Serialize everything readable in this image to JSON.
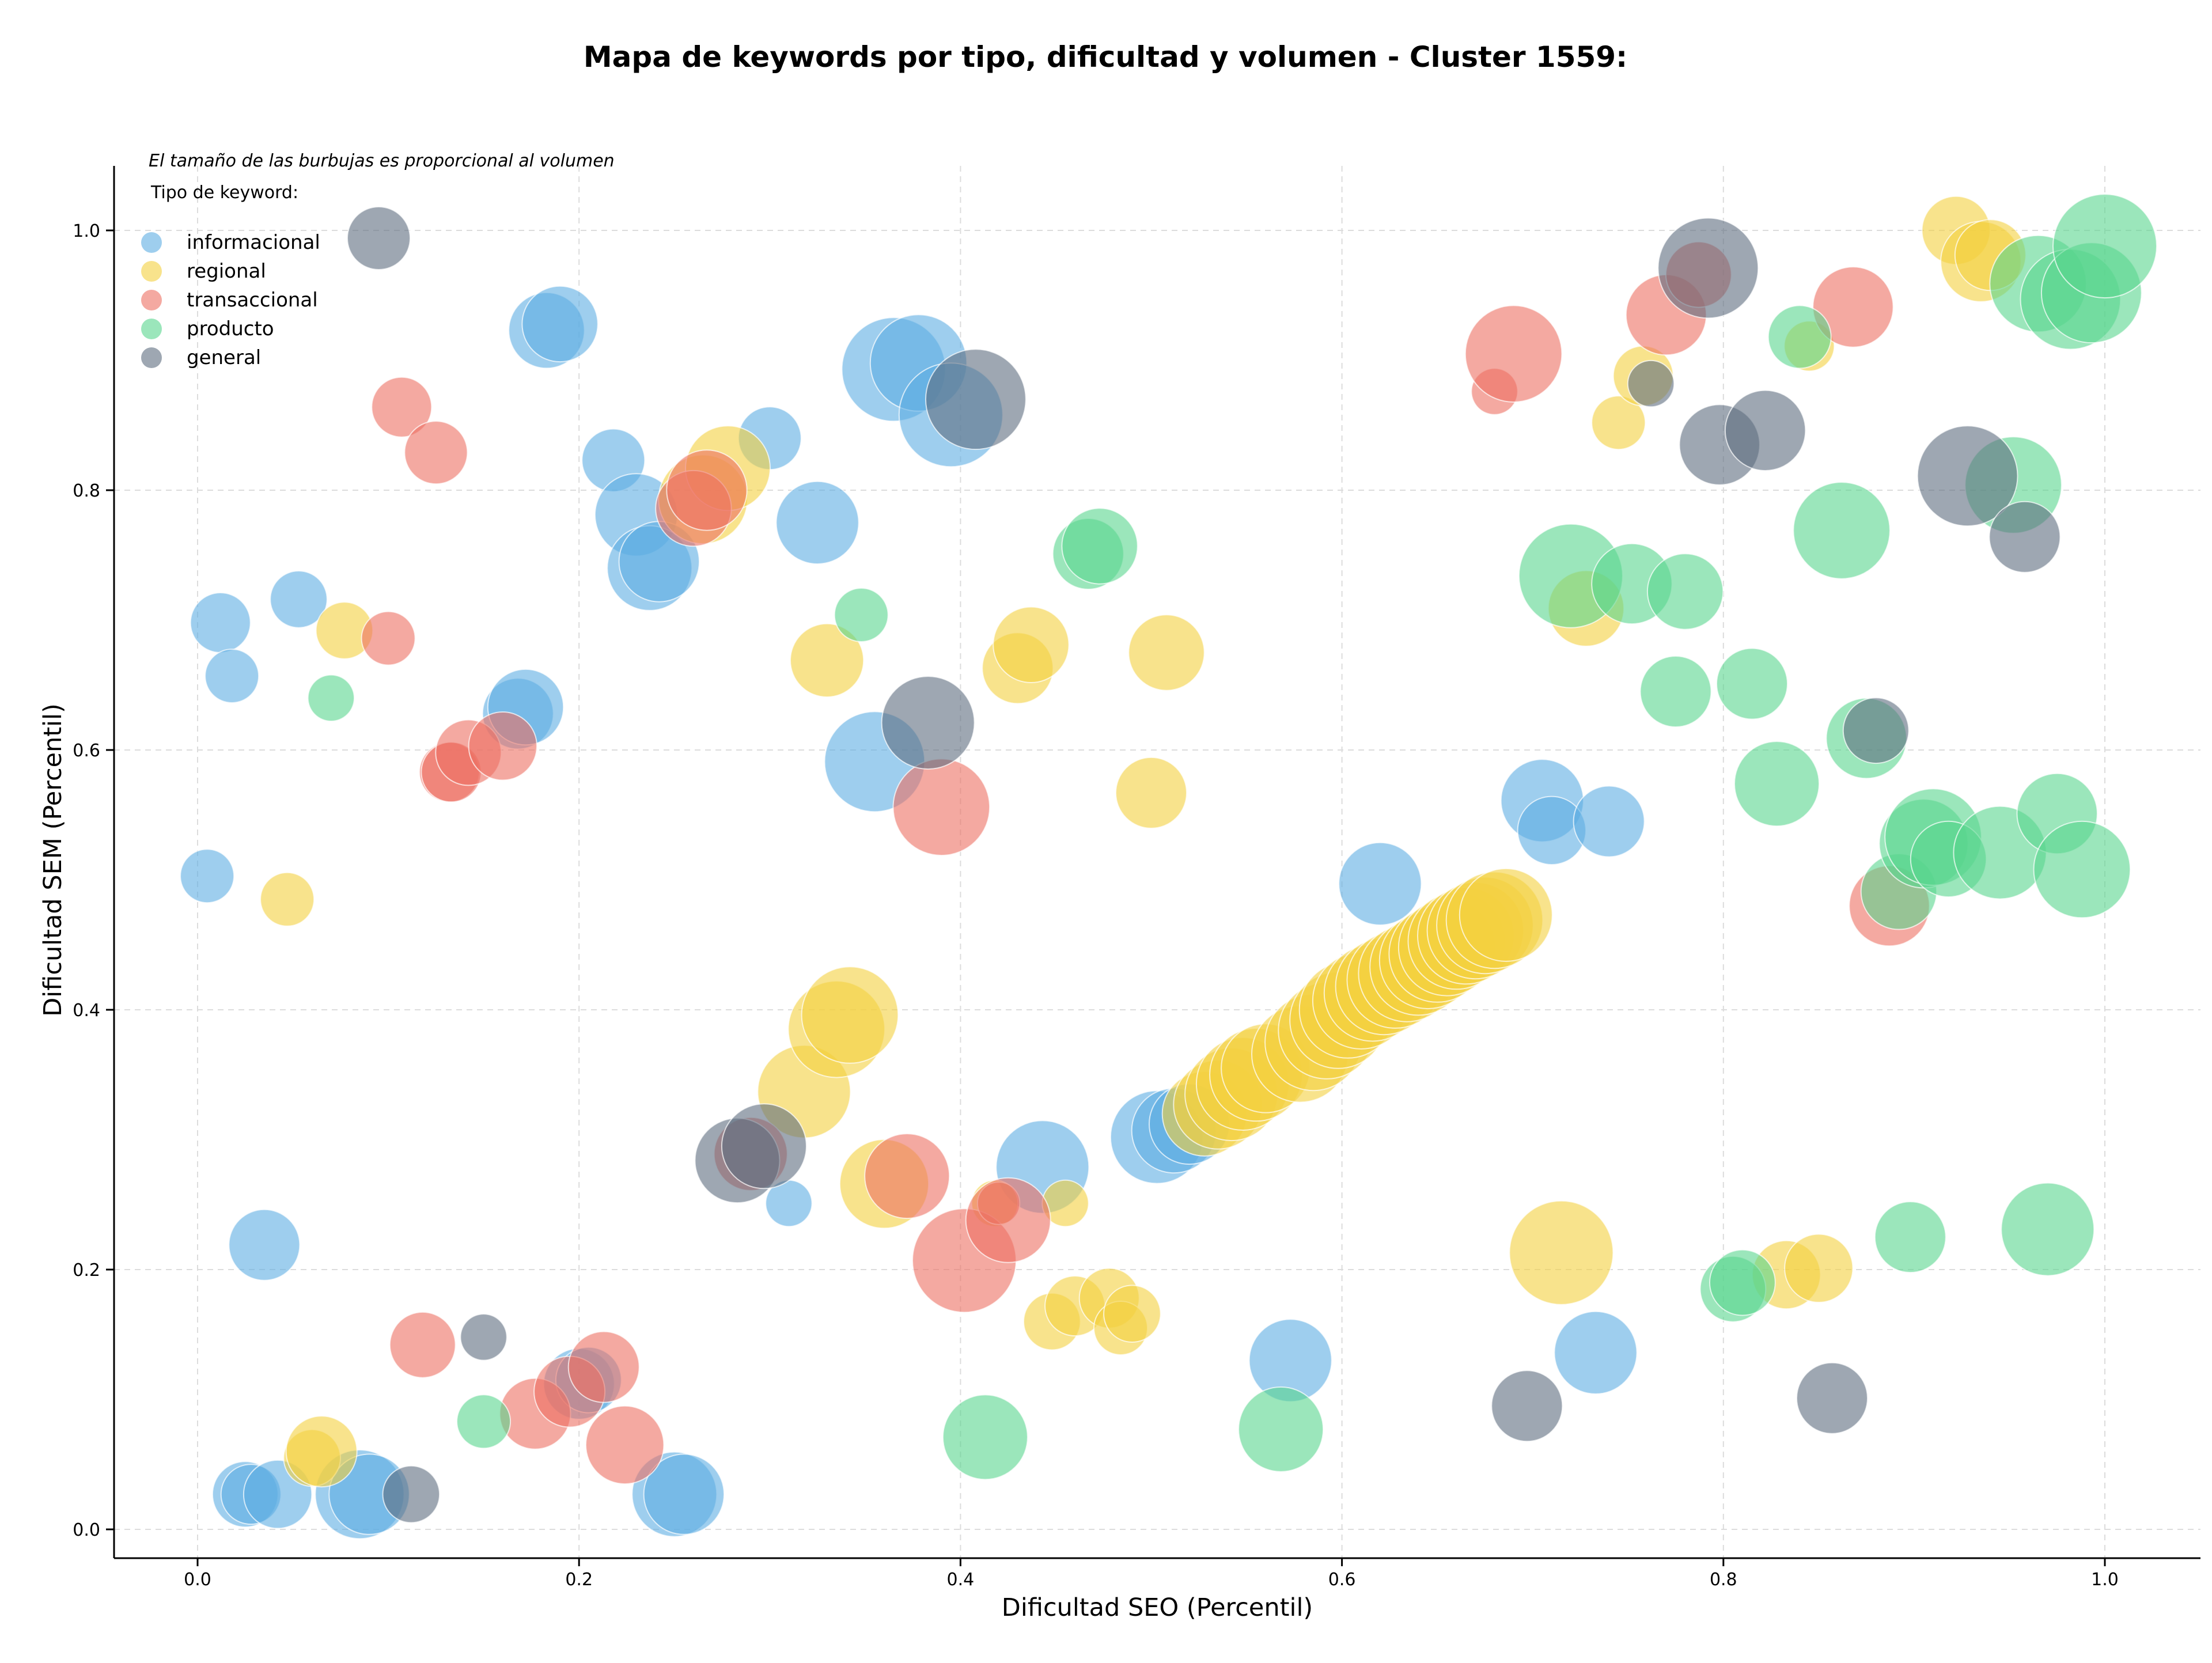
{
  "chart_data": {
    "type": "scatter",
    "title": "Mapa de keywords por tipo, dificultad y volumen - Cluster 1559:",
    "xlabel": "Dificultad SEO (Percentil)",
    "ylabel": "Dificultad SEM (Percentil)",
    "annotation": "El tamaño de las burbujas es proporcional al volumen",
    "legend_title": "Tipo de keyword:",
    "legend_position": "top-left",
    "xlim": [
      -0.04,
      1.05
    ],
    "ylim": [
      -0.02,
      1.05
    ],
    "x_ticks": [
      "0.0",
      "0.2",
      "0.4",
      "0.6",
      "0.8",
      "1.0"
    ],
    "y_ticks": [
      "0.0",
      "0.2",
      "0.4",
      "0.6",
      "0.8",
      "1.0"
    ],
    "grid": true,
    "size_encodes": "volume (relative)",
    "series": [
      {
        "name": "informacional",
        "color": "#5dade2",
        "points": [
          [
            0.005,
            0.503,
            0.08
          ],
          [
            0.012,
            0.698,
            0.1
          ],
          [
            0.018,
            0.657,
            0.08
          ],
          [
            0.053,
            0.716,
            0.09
          ],
          [
            0.035,
            0.219,
            0.14
          ],
          [
            0.025,
            0.027,
            0.12
          ],
          [
            0.028,
            0.027,
            0.1
          ],
          [
            0.042,
            0.027,
            0.13
          ],
          [
            0.085,
            0.027,
            0.22
          ],
          [
            0.09,
            0.027,
            0.18
          ],
          [
            0.183,
            0.923,
            0.16
          ],
          [
            0.19,
            0.928,
            0.16
          ],
          [
            0.168,
            0.628,
            0.14
          ],
          [
            0.172,
            0.633,
            0.16
          ],
          [
            0.2,
            0.112,
            0.14
          ],
          [
            0.205,
            0.115,
            0.12
          ],
          [
            0.218,
            0.823,
            0.11
          ],
          [
            0.23,
            0.781,
            0.19
          ],
          [
            0.237,
            0.74,
            0.2
          ],
          [
            0.242,
            0.745,
            0.18
          ],
          [
            0.25,
            0.027,
            0.2
          ],
          [
            0.255,
            0.027,
            0.18
          ],
          [
            0.3,
            0.84,
            0.11
          ],
          [
            0.31,
            0.251,
            0.06
          ],
          [
            0.325,
            0.775,
            0.19
          ],
          [
            0.355,
            0.591,
            0.28
          ],
          [
            0.365,
            0.893,
            0.3
          ],
          [
            0.378,
            0.898,
            0.26
          ],
          [
            0.395,
            0.858,
            0.3
          ],
          [
            0.443,
            0.279,
            0.24
          ],
          [
            0.503,
            0.302,
            0.24
          ],
          [
            0.512,
            0.307,
            0.2
          ],
          [
            0.52,
            0.312,
            0.18
          ],
          [
            0.573,
            0.13,
            0.19
          ],
          [
            0.62,
            0.497,
            0.19
          ],
          [
            0.705,
            0.561,
            0.19
          ],
          [
            0.71,
            0.538,
            0.13
          ],
          [
            0.733,
            0.136,
            0.19
          ],
          [
            0.74,
            0.545,
            0.14
          ]
        ]
      },
      {
        "name": "regional",
        "color": "#f4d03f",
        "points": [
          [
            0.047,
            0.485,
            0.08
          ],
          [
            0.06,
            0.055,
            0.09
          ],
          [
            0.065,
            0.06,
            0.14
          ],
          [
            0.077,
            0.692,
            0.09
          ],
          [
            0.265,
            0.793,
            0.22
          ],
          [
            0.278,
            0.817,
            0.2
          ],
          [
            0.318,
            0.337,
            0.24
          ],
          [
            0.33,
            0.669,
            0.15
          ],
          [
            0.335,
            0.385,
            0.26
          ],
          [
            0.342,
            0.396,
            0.26
          ],
          [
            0.36,
            0.266,
            0.22
          ],
          [
            0.418,
            0.251,
            0.06
          ],
          [
            0.43,
            0.663,
            0.14
          ],
          [
            0.437,
            0.681,
            0.16
          ],
          [
            0.448,
            0.16,
            0.09
          ],
          [
            0.455,
            0.251,
            0.06
          ],
          [
            0.46,
            0.172,
            0.1
          ],
          [
            0.478,
            0.178,
            0.1
          ],
          [
            0.484,
            0.155,
            0.08
          ],
          [
            0.49,
            0.166,
            0.09
          ],
          [
            0.5,
            0.567,
            0.14
          ],
          [
            0.508,
            0.675,
            0.16
          ],
          [
            0.528,
            0.32,
            0.2
          ],
          [
            0.535,
            0.327,
            0.22
          ],
          [
            0.542,
            0.335,
            0.24
          ],
          [
            0.548,
            0.343,
            0.24
          ],
          [
            0.555,
            0.35,
            0.24
          ],
          [
            0.56,
            0.355,
            0.22
          ],
          [
            0.578,
            0.366,
            0.26
          ],
          [
            0.585,
            0.375,
            0.26
          ],
          [
            0.592,
            0.384,
            0.26
          ],
          [
            0.598,
            0.392,
            0.26
          ],
          [
            0.603,
            0.4,
            0.26
          ],
          [
            0.61,
            0.407,
            0.26
          ],
          [
            0.616,
            0.413,
            0.26
          ],
          [
            0.622,
            0.418,
            0.26
          ],
          [
            0.628,
            0.423,
            0.26
          ],
          [
            0.634,
            0.428,
            0.26
          ],
          [
            0.64,
            0.433,
            0.26
          ],
          [
            0.645,
            0.438,
            0.26
          ],
          [
            0.65,
            0.443,
            0.26
          ],
          [
            0.655,
            0.448,
            0.26
          ],
          [
            0.66,
            0.453,
            0.26
          ],
          [
            0.665,
            0.457,
            0.26
          ],
          [
            0.67,
            0.461,
            0.26
          ],
          [
            0.675,
            0.465,
            0.26
          ],
          [
            0.68,
            0.469,
            0.26
          ],
          [
            0.686,
            0.473,
            0.24
          ],
          [
            0.715,
            0.213,
            0.3
          ],
          [
            0.728,
            0.709,
            0.16
          ],
          [
            0.745,
            0.852,
            0.08
          ],
          [
            0.758,
            0.888,
            0.1
          ],
          [
            0.833,
            0.196,
            0.13
          ],
          [
            0.845,
            0.911,
            0.07
          ],
          [
            0.85,
            0.201,
            0.13
          ],
          [
            0.922,
            1.0,
            0.13
          ],
          [
            0.935,
            0.976,
            0.18
          ],
          [
            0.94,
            0.981,
            0.14
          ]
        ]
      },
      {
        "name": "transaccional",
        "color": "#ec7063",
        "points": [
          [
            0.1,
            0.686,
            0.08
          ],
          [
            0.107,
            0.864,
            0.1
          ],
          [
            0.118,
            0.142,
            0.12
          ],
          [
            0.125,
            0.829,
            0.11
          ],
          [
            0.132,
            0.583,
            0.1
          ],
          [
            0.133,
            0.583,
            0.1
          ],
          [
            0.142,
            0.598,
            0.12
          ],
          [
            0.16,
            0.603,
            0.13
          ],
          [
            0.177,
            0.089,
            0.14
          ],
          [
            0.195,
            0.106,
            0.14
          ],
          [
            0.213,
            0.125,
            0.14
          ],
          [
            0.224,
            0.065,
            0.17
          ],
          [
            0.26,
            0.786,
            0.16
          ],
          [
            0.267,
            0.8,
            0.18
          ],
          [
            0.29,
            0.289,
            0.15
          ],
          [
            0.372,
            0.272,
            0.2
          ],
          [
            0.39,
            0.556,
            0.26
          ],
          [
            0.402,
            0.207,
            0.3
          ],
          [
            0.42,
            0.251,
            0.05
          ],
          [
            0.425,
            0.238,
            0.2
          ],
          [
            0.68,
            0.876,
            0.06
          ],
          [
            0.69,
            0.905,
            0.26
          ],
          [
            0.77,
            0.935,
            0.18
          ],
          [
            0.787,
            0.966,
            0.12
          ],
          [
            0.868,
            0.941,
            0.18
          ],
          [
            0.887,
            0.48,
            0.18
          ]
        ]
      },
      {
        "name": "producto",
        "color": "#58d68d",
        "points": [
          [
            0.07,
            0.64,
            0.06
          ],
          [
            0.15,
            0.083,
            0.08
          ],
          [
            0.348,
            0.704,
            0.08
          ],
          [
            0.413,
            0.071,
            0.2
          ],
          [
            0.467,
            0.751,
            0.14
          ],
          [
            0.473,
            0.757,
            0.16
          ],
          [
            0.568,
            0.077,
            0.2
          ],
          [
            0.72,
            0.734,
            0.3
          ],
          [
            0.752,
            0.728,
            0.18
          ],
          [
            0.775,
            0.645,
            0.14
          ],
          [
            0.78,
            0.722,
            0.16
          ],
          [
            0.805,
            0.185,
            0.12
          ],
          [
            0.81,
            0.19,
            0.12
          ],
          [
            0.815,
            0.651,
            0.14
          ],
          [
            0.828,
            0.574,
            0.2
          ],
          [
            0.84,
            0.918,
            0.11
          ],
          [
            0.862,
            0.769,
            0.26
          ],
          [
            0.875,
            0.609,
            0.18
          ],
          [
            0.892,
            0.491,
            0.16
          ],
          [
            0.898,
            0.225,
            0.14
          ],
          [
            0.905,
            0.528,
            0.22
          ],
          [
            0.91,
            0.533,
            0.26
          ],
          [
            0.918,
            0.516,
            0.16
          ],
          [
            0.945,
            0.521,
            0.24
          ],
          [
            0.952,
            0.804,
            0.26
          ],
          [
            0.965,
            0.959,
            0.26
          ],
          [
            0.97,
            0.231,
            0.24
          ],
          [
            0.975,
            0.551,
            0.18
          ],
          [
            0.982,
            0.947,
            0.28
          ],
          [
            0.988,
            0.508,
            0.26
          ],
          [
            0.993,
            0.952,
            0.28
          ],
          [
            1.0,
            0.988,
            0.3
          ]
        ]
      },
      {
        "name": "general",
        "color": "#5d6d7e",
        "points": [
          [
            0.095,
            0.994,
            0.11
          ],
          [
            0.112,
            0.027,
            0.09
          ],
          [
            0.15,
            0.148,
            0.06
          ],
          [
            0.283,
            0.284,
            0.2
          ],
          [
            0.297,
            0.295,
            0.2
          ],
          [
            0.383,
            0.621,
            0.24
          ],
          [
            0.408,
            0.87,
            0.28
          ],
          [
            0.697,
            0.095,
            0.14
          ],
          [
            0.762,
            0.882,
            0.06
          ],
          [
            0.792,
            0.971,
            0.28
          ],
          [
            0.798,
            0.835,
            0.18
          ],
          [
            0.822,
            0.846,
            0.18
          ],
          [
            0.857,
            0.101,
            0.14
          ],
          [
            0.88,
            0.615,
            0.12
          ],
          [
            0.928,
            0.811,
            0.28
          ],
          [
            0.958,
            0.764,
            0.14
          ]
        ]
      }
    ]
  }
}
